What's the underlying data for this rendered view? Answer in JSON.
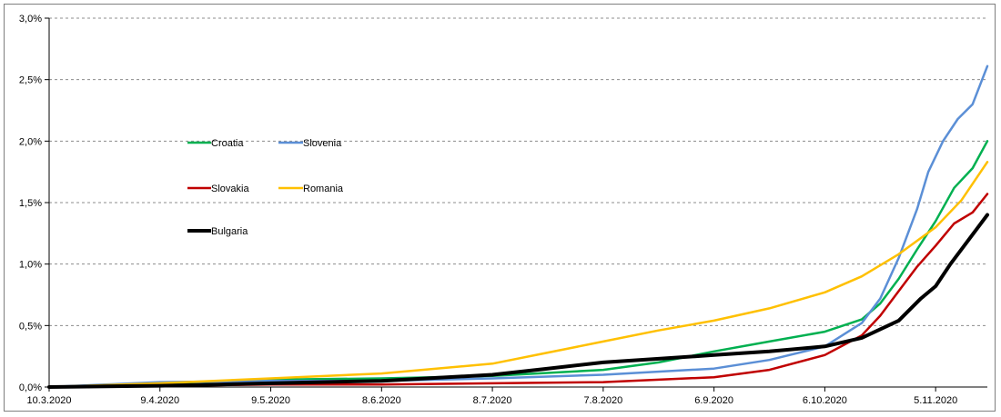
{
  "chart_data": {
    "type": "line",
    "title": "",
    "xlabel": "",
    "ylabel": "",
    "ylim": [
      0,
      3.0
    ],
    "y_ticks": [
      "0,0%",
      "0,5%",
      "1,0%",
      "1,5%",
      "2,0%",
      "2,5%",
      "3,0%"
    ],
    "y_tick_values": [
      0,
      0.5,
      1.0,
      1.5,
      2.0,
      2.5,
      3.0
    ],
    "x_range": [
      "2020-03-10",
      "2020-11-19"
    ],
    "x_ticks": [
      "10.3.2020",
      "9.4.2020",
      "9.5.2020",
      "8.6.2020",
      "8.7.2020",
      "7.8.2020",
      "6.9.2020",
      "6.10.2020",
      "5.11.2020"
    ],
    "x_tick_dates": [
      "2020-03-10",
      "2020-04-09",
      "2020-05-09",
      "2020-06-08",
      "2020-07-08",
      "2020-08-07",
      "2020-09-06",
      "2020-10-06",
      "2020-11-05"
    ],
    "grid": "horizontal dashed",
    "legend_position": "left-middle",
    "series": [
      {
        "name": "Croatia",
        "color": "#00b050",
        "stroke": 2.5,
        "points": [
          [
            "2020-03-10",
            0
          ],
          [
            "2020-04-09",
            0.03
          ],
          [
            "2020-05-09",
            0.06
          ],
          [
            "2020-06-08",
            0.07
          ],
          [
            "2020-07-08",
            0.09
          ],
          [
            "2020-08-07",
            0.14
          ],
          [
            "2020-08-22",
            0.2
          ],
          [
            "2020-09-06",
            0.29
          ],
          [
            "2020-09-21",
            0.37
          ],
          [
            "2020-10-06",
            0.45
          ],
          [
            "2020-10-16",
            0.55
          ],
          [
            "2020-10-21",
            0.68
          ],
          [
            "2020-10-26",
            0.88
          ],
          [
            "2020-10-31",
            1.12
          ],
          [
            "2020-11-05",
            1.35
          ],
          [
            "2020-11-10",
            1.62
          ],
          [
            "2020-11-15",
            1.78
          ],
          [
            "2020-11-19",
            2.0
          ]
        ]
      },
      {
        "name": "Slovenia",
        "color": "#5b8fd6",
        "stroke": 2.5,
        "points": [
          [
            "2020-03-10",
            0
          ],
          [
            "2020-03-25",
            0.02
          ],
          [
            "2020-04-09",
            0.04
          ],
          [
            "2020-05-09",
            0.05
          ],
          [
            "2020-06-08",
            0.05
          ],
          [
            "2020-07-08",
            0.07
          ],
          [
            "2020-08-07",
            0.1
          ],
          [
            "2020-09-06",
            0.15
          ],
          [
            "2020-09-21",
            0.22
          ],
          [
            "2020-10-06",
            0.33
          ],
          [
            "2020-10-16",
            0.52
          ],
          [
            "2020-10-21",
            0.72
          ],
          [
            "2020-10-26",
            1.05
          ],
          [
            "2020-10-31",
            1.45
          ],
          [
            "2020-11-03",
            1.75
          ],
          [
            "2020-11-07",
            2.0
          ],
          [
            "2020-11-11",
            2.18
          ],
          [
            "2020-11-15",
            2.3
          ],
          [
            "2020-11-19",
            2.61
          ]
        ]
      },
      {
        "name": "Slovakia",
        "color": "#c00000",
        "stroke": 2.5,
        "points": [
          [
            "2020-03-10",
            0
          ],
          [
            "2020-04-09",
            0.01
          ],
          [
            "2020-05-09",
            0.02
          ],
          [
            "2020-06-08",
            0.02
          ],
          [
            "2020-07-08",
            0.03
          ],
          [
            "2020-08-07",
            0.04
          ],
          [
            "2020-09-06",
            0.08
          ],
          [
            "2020-09-21",
            0.14
          ],
          [
            "2020-10-06",
            0.26
          ],
          [
            "2020-10-16",
            0.42
          ],
          [
            "2020-10-21",
            0.58
          ],
          [
            "2020-10-26",
            0.78
          ],
          [
            "2020-10-31",
            0.98
          ],
          [
            "2020-11-05",
            1.15
          ],
          [
            "2020-11-10",
            1.33
          ],
          [
            "2020-11-15",
            1.42
          ],
          [
            "2020-11-19",
            1.57
          ]
        ]
      },
      {
        "name": "Romania",
        "color": "#ffc000",
        "stroke": 2.5,
        "points": [
          [
            "2020-03-10",
            0
          ],
          [
            "2020-04-09",
            0.03
          ],
          [
            "2020-05-09",
            0.07
          ],
          [
            "2020-06-08",
            0.11
          ],
          [
            "2020-07-08",
            0.19
          ],
          [
            "2020-07-23",
            0.28
          ],
          [
            "2020-08-07",
            0.37
          ],
          [
            "2020-08-22",
            0.46
          ],
          [
            "2020-09-06",
            0.54
          ],
          [
            "2020-09-21",
            0.64
          ],
          [
            "2020-10-06",
            0.77
          ],
          [
            "2020-10-16",
            0.9
          ],
          [
            "2020-10-26",
            1.08
          ],
          [
            "2020-11-05",
            1.3
          ],
          [
            "2020-11-12",
            1.52
          ],
          [
            "2020-11-19",
            1.83
          ]
        ]
      },
      {
        "name": "Bulgaria",
        "color": "#000000",
        "stroke": 4,
        "points": [
          [
            "2020-03-10",
            0
          ],
          [
            "2020-04-09",
            0.01
          ],
          [
            "2020-05-09",
            0.03
          ],
          [
            "2020-06-08",
            0.05
          ],
          [
            "2020-07-08",
            0.1
          ],
          [
            "2020-07-23",
            0.15
          ],
          [
            "2020-08-07",
            0.2
          ],
          [
            "2020-08-22",
            0.23
          ],
          [
            "2020-09-06",
            0.26
          ],
          [
            "2020-09-21",
            0.29
          ],
          [
            "2020-10-06",
            0.33
          ],
          [
            "2020-10-16",
            0.4
          ],
          [
            "2020-10-26",
            0.54
          ],
          [
            "2020-11-01",
            0.72
          ],
          [
            "2020-11-05",
            0.82
          ],
          [
            "2020-11-09",
            1.0
          ],
          [
            "2020-11-12",
            1.12
          ],
          [
            "2020-11-16",
            1.28
          ],
          [
            "2020-11-19",
            1.4
          ]
        ]
      }
    ]
  },
  "legend": {
    "croatia": "Croatia",
    "slovenia": "Slovenia",
    "slovakia": "Slovakia",
    "romania": "Romania",
    "bulgaria": "Bulgaria"
  }
}
